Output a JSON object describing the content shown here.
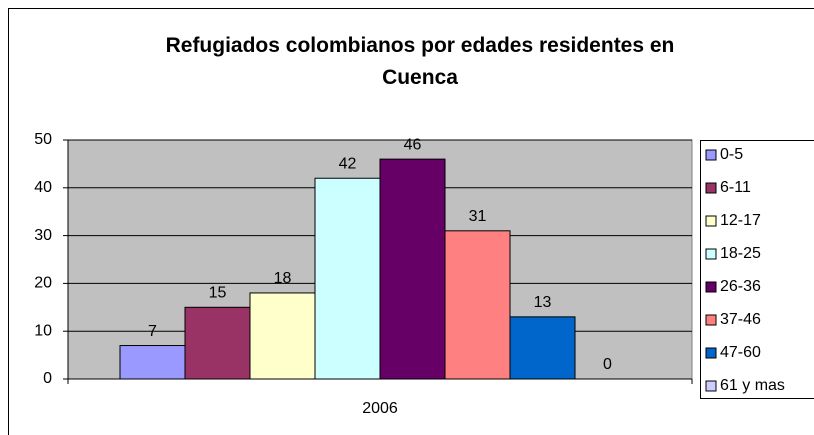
{
  "chart_data": {
    "type": "bar",
    "title": "Refugiados colombianos por edades residentes en Cuenca",
    "categories": [
      "2006"
    ],
    "series": [
      {
        "name": "0-5",
        "color": "#9999ff",
        "values": [
          7
        ]
      },
      {
        "name": "6-11",
        "color": "#993366",
        "values": [
          15
        ]
      },
      {
        "name": "12-17",
        "color": "#ffffcc",
        "values": [
          18
        ]
      },
      {
        "name": "18-25",
        "color": "#ccffff",
        "values": [
          42
        ]
      },
      {
        "name": "26-36",
        "color": "#660066",
        "values": [
          46
        ]
      },
      {
        "name": "37-46",
        "color": "#ff8080",
        "values": [
          31
        ]
      },
      {
        "name": "47-60",
        "color": "#0066cc",
        "values": [
          13
        ]
      },
      {
        "name": "61 y mas",
        "color": "#ccccff",
        "values": [
          0
        ]
      }
    ],
    "ylim": [
      0,
      50
    ],
    "yticks": [
      0,
      10,
      20,
      30,
      40,
      50
    ],
    "grid": true,
    "legend": "right"
  }
}
